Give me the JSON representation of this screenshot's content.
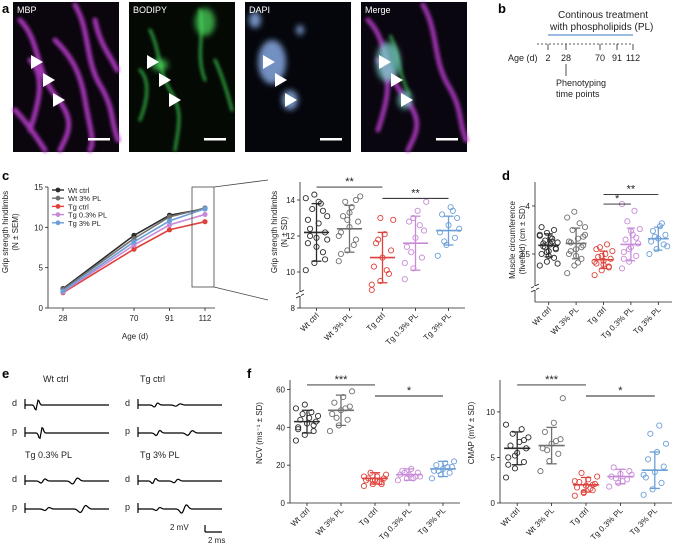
{
  "panel_labels": {
    "a": "a",
    "b": "b",
    "c": "c",
    "d": "d",
    "e": "e",
    "f": "f"
  },
  "micro": {
    "titles": [
      "MBP",
      "BODIPY",
      "DAPI",
      "Merge"
    ],
    "colors": {
      "mbp": "#c13ad0",
      "bodipy": "#3fcf55",
      "dapi": "#8aa8dc"
    }
  },
  "timeline": {
    "treatment_line1": "Continous treatment",
    "treatment_line2": "with phospholipids (PL)",
    "axis_label": "Age (d)",
    "ticks": [
      "2",
      "28",
      "70",
      "91",
      "112"
    ],
    "tick_values": [
      2,
      28,
      70,
      91,
      112
    ],
    "phenotyping_line1": "Phenotyping",
    "phenotyping_line2": "time points",
    "treatment_color": "#7aa6d6"
  },
  "groups": {
    "all": [
      "Wt ctrl",
      "Wt 3% PL",
      "Tg ctrl",
      "Tg 0.3% PL",
      "Tg 3% PL"
    ],
    "colors": [
      "#2b2b2b",
      "#707070",
      "#e0413b",
      "#c88ad8",
      "#6c9fd8"
    ]
  },
  "chart_data": [
    {
      "id": "c_line",
      "type": "line",
      "title": "",
      "xlabel": "Age (d)",
      "ylabel": "Grip strength hindlimbs\n(N ± SEM)",
      "ylabel_line1": "Grip strength hindlimbs",
      "ylabel_line2": "(N ± SEM)",
      "x": [
        28,
        70,
        91,
        112
      ],
      "x_tick_labels": [
        "28",
        "70",
        "91",
        "112"
      ],
      "ylim": [
        0,
        15
      ],
      "y_ticks": [
        0,
        5,
        10,
        15
      ],
      "legend_position": "top-left",
      "series": [
        {
          "name": "Wt ctrl",
          "values": [
            2.4,
            9.0,
            11.5,
            12.3
          ]
        },
        {
          "name": "Wt 3% PL",
          "values": [
            2.3,
            8.6,
            11.3,
            12.4
          ]
        },
        {
          "name": "Tg ctrl",
          "values": [
            1.9,
            7.3,
            9.7,
            10.7
          ]
        },
        {
          "name": "Tg 0.3% PL",
          "values": [
            2.0,
            7.8,
            10.3,
            11.6
          ]
        },
        {
          "name": "Tg 3% PL",
          "values": [
            2.1,
            8.2,
            10.8,
            12.3
          ]
        }
      ]
    },
    {
      "id": "c_scatter",
      "type": "scatter",
      "title": "",
      "xlabel": "",
      "ylabel_line1": "Grip strength hindlimbs",
      "ylabel_line2": "(N ± SD)",
      "categories": [
        "Wt ctrl",
        "Wt 3% PL",
        "Tg ctrl",
        "Tg 0.3% PL",
        "Tg 3% PL"
      ],
      "ylim": [
        8,
        15
      ],
      "y_ticks": [
        8,
        10,
        12,
        14
      ],
      "axis_break": true,
      "means": [
        12.2,
        12.4,
        10.8,
        11.6,
        12.3
      ],
      "sd": [
        1.6,
        1.3,
        1.4,
        1.5,
        0.8
      ],
      "points": [
        [
          10.1,
          10.5,
          11.1,
          11.6,
          11.9,
          12.2,
          12.4,
          12.7,
          13.1,
          13.5,
          13.8,
          14.1,
          14.3,
          13.4,
          12.9,
          11.4,
          10.7,
          12.0,
          13.9,
          11.8
        ],
        [
          10.6,
          11.2,
          11.8,
          12.2,
          12.5,
          12.8,
          13.1,
          13.6,
          14.2,
          13.9,
          11.5,
          12.0,
          12.9,
          14.0,
          11.0,
          13.3
        ],
        [
          9.0,
          9.5,
          9.9,
          10.3,
          10.8,
          11.2,
          11.6,
          12.1,
          12.9,
          11.8,
          10.1,
          9.3,
          13.0
        ],
        [
          9.6,
          10.2,
          10.8,
          11.4,
          11.9,
          12.3,
          12.8,
          13.4,
          13.9,
          11.1,
          12.6,
          10.5,
          13.0
        ],
        [
          10.9,
          11.5,
          11.9,
          12.2,
          12.6,
          13.0,
          13.2,
          13.6,
          12.4,
          11.7,
          13.4
        ]
      ],
      "significance": [
        {
          "from": 0,
          "to": 2,
          "label": "**"
        },
        {
          "from": 2,
          "to": 4,
          "label": "**"
        }
      ]
    },
    {
      "id": "d_scatter",
      "type": "scatter",
      "title": "",
      "ylabel_line1": "Muscle circumference",
      "ylabel_line2": "(fivefold) (cm ± SD)",
      "categories": [
        "Wt ctrl",
        "Wt 3% PL",
        "Tg ctrl",
        "Tg 0.3% PL",
        "Tg 3% PL"
      ],
      "ylim": [
        3.0,
        4.25
      ],
      "y_ticks": [
        3.5,
        4.0
      ],
      "axis_break": true,
      "means": [
        3.59,
        3.61,
        3.44,
        3.6,
        3.66
      ],
      "sd": [
        0.12,
        0.16,
        0.09,
        0.17,
        0.12
      ],
      "points": [
        [
          3.38,
          3.42,
          3.46,
          3.5,
          3.53,
          3.56,
          3.58,
          3.6,
          3.62,
          3.64,
          3.66,
          3.69,
          3.72,
          3.75,
          3.78,
          3.48,
          3.55,
          3.61,
          3.67,
          3.4,
          3.57,
          3.63,
          3.7,
          3.52
        ],
        [
          3.3,
          3.38,
          3.45,
          3.5,
          3.55,
          3.59,
          3.62,
          3.66,
          3.7,
          3.75,
          3.82,
          3.88,
          3.94,
          3.57,
          3.63,
          3.48,
          3.68,
          3.53,
          3.41,
          3.78
        ],
        [
          3.28,
          3.33,
          3.37,
          3.4,
          3.43,
          3.45,
          3.47,
          3.5,
          3.53,
          3.57,
          3.6,
          3.42,
          3.48,
          3.36,
          3.55,
          3.39
        ],
        [
          3.35,
          3.42,
          3.48,
          3.52,
          3.57,
          3.61,
          3.65,
          3.7,
          3.76,
          3.84,
          3.95,
          4.02,
          3.55,
          3.67,
          3.45,
          3.74
        ],
        [
          3.5,
          3.55,
          3.6,
          3.63,
          3.66,
          3.7,
          3.74,
          3.79,
          3.58,
          3.68,
          3.82
        ]
      ],
      "significance": [
        {
          "from": 2,
          "to": 3,
          "label": "*"
        },
        {
          "from": 2,
          "to": 4,
          "label": "**"
        }
      ]
    },
    {
      "id": "f_ncv",
      "type": "scatter",
      "title": "",
      "ylabel": "NCV (ms⁻¹ ± SD)",
      "categories": [
        "Wt ctrl",
        "Wt 3% PL",
        "Tg ctrl",
        "Tg 0.3% PL",
        "Tg 3% PL"
      ],
      "ylim": [
        0,
        65
      ],
      "y_ticks": [
        0,
        20,
        40,
        60
      ],
      "means": [
        43,
        49,
        13,
        15,
        18
      ],
      "sd": [
        6,
        8,
        3,
        3,
        4
      ],
      "points": [
        [
          33,
          36,
          38,
          40,
          42,
          43,
          44,
          45,
          46,
          47,
          48,
          50,
          52,
          41,
          39
        ],
        [
          38,
          41,
          44,
          47,
          49,
          51,
          53,
          56,
          59,
          45,
          50
        ],
        [
          9,
          10,
          11,
          12,
          12,
          13,
          13,
          14,
          15,
          16,
          11,
          14,
          12,
          10
        ],
        [
          12,
          13,
          14,
          15,
          15,
          16,
          17,
          18,
          14,
          16,
          13
        ],
        [
          13,
          15,
          16,
          17,
          18,
          19,
          20,
          21,
          22,
          17,
          19
        ]
      ],
      "significance": [
        {
          "from": 0,
          "to": 2,
          "label": "***"
        },
        {
          "from": 2,
          "to": 4,
          "label": "*"
        }
      ]
    },
    {
      "id": "f_cmap",
      "type": "scatter",
      "title": "",
      "ylabel": "CMAP (mV ± SD)",
      "categories": [
        "Wt ctrl",
        "Wt 3% PL",
        "Tg ctrl",
        "Tg 0.3% PL",
        "Tg 3% PL"
      ],
      "ylim": [
        0,
        13.5
      ],
      "y_ticks": [
        0,
        5,
        10
      ],
      "means": [
        6.0,
        6.3,
        2.0,
        2.9,
        3.6
      ],
      "sd": [
        1.8,
        2.0,
        0.8,
        0.8,
        2.0
      ],
      "points": [
        [
          2.8,
          3.8,
          4.5,
          5.0,
          5.5,
          6.0,
          6.3,
          6.7,
          7.2,
          7.6,
          8.1,
          8.6,
          5.2,
          6.9,
          4.2
        ],
        [
          3.5,
          4.6,
          5.4,
          6.0,
          6.5,
          7.0,
          7.8,
          8.8,
          11.5,
          5.8,
          6.8
        ],
        [
          0.8,
          1.1,
          1.4,
          1.7,
          1.9,
          2.1,
          2.3,
          2.6,
          2.9,
          3.3,
          1.6,
          2.4,
          1.2,
          2.0
        ],
        [
          1.8,
          2.2,
          2.6,
          2.9,
          3.2,
          3.5,
          3.9,
          2.4,
          3.1,
          2.7
        ],
        [
          0.9,
          1.5,
          2.2,
          2.8,
          3.4,
          4.0,
          4.8,
          5.6,
          6.5,
          7.6,
          8.5,
          3.1
        ]
      ],
      "significance": [
        {
          "from": 0,
          "to": 2,
          "label": "***"
        },
        {
          "from": 2,
          "to": 4,
          "label": "*"
        }
      ]
    }
  ],
  "traces": {
    "labels": [
      "Wt ctrl",
      "Tg ctrl",
      "Tg 0.3% PL",
      "Tg 3% PL"
    ],
    "d_label": "d",
    "p_label": "p",
    "scale_mv": "2 mV",
    "scale_ms": "2 ms"
  }
}
